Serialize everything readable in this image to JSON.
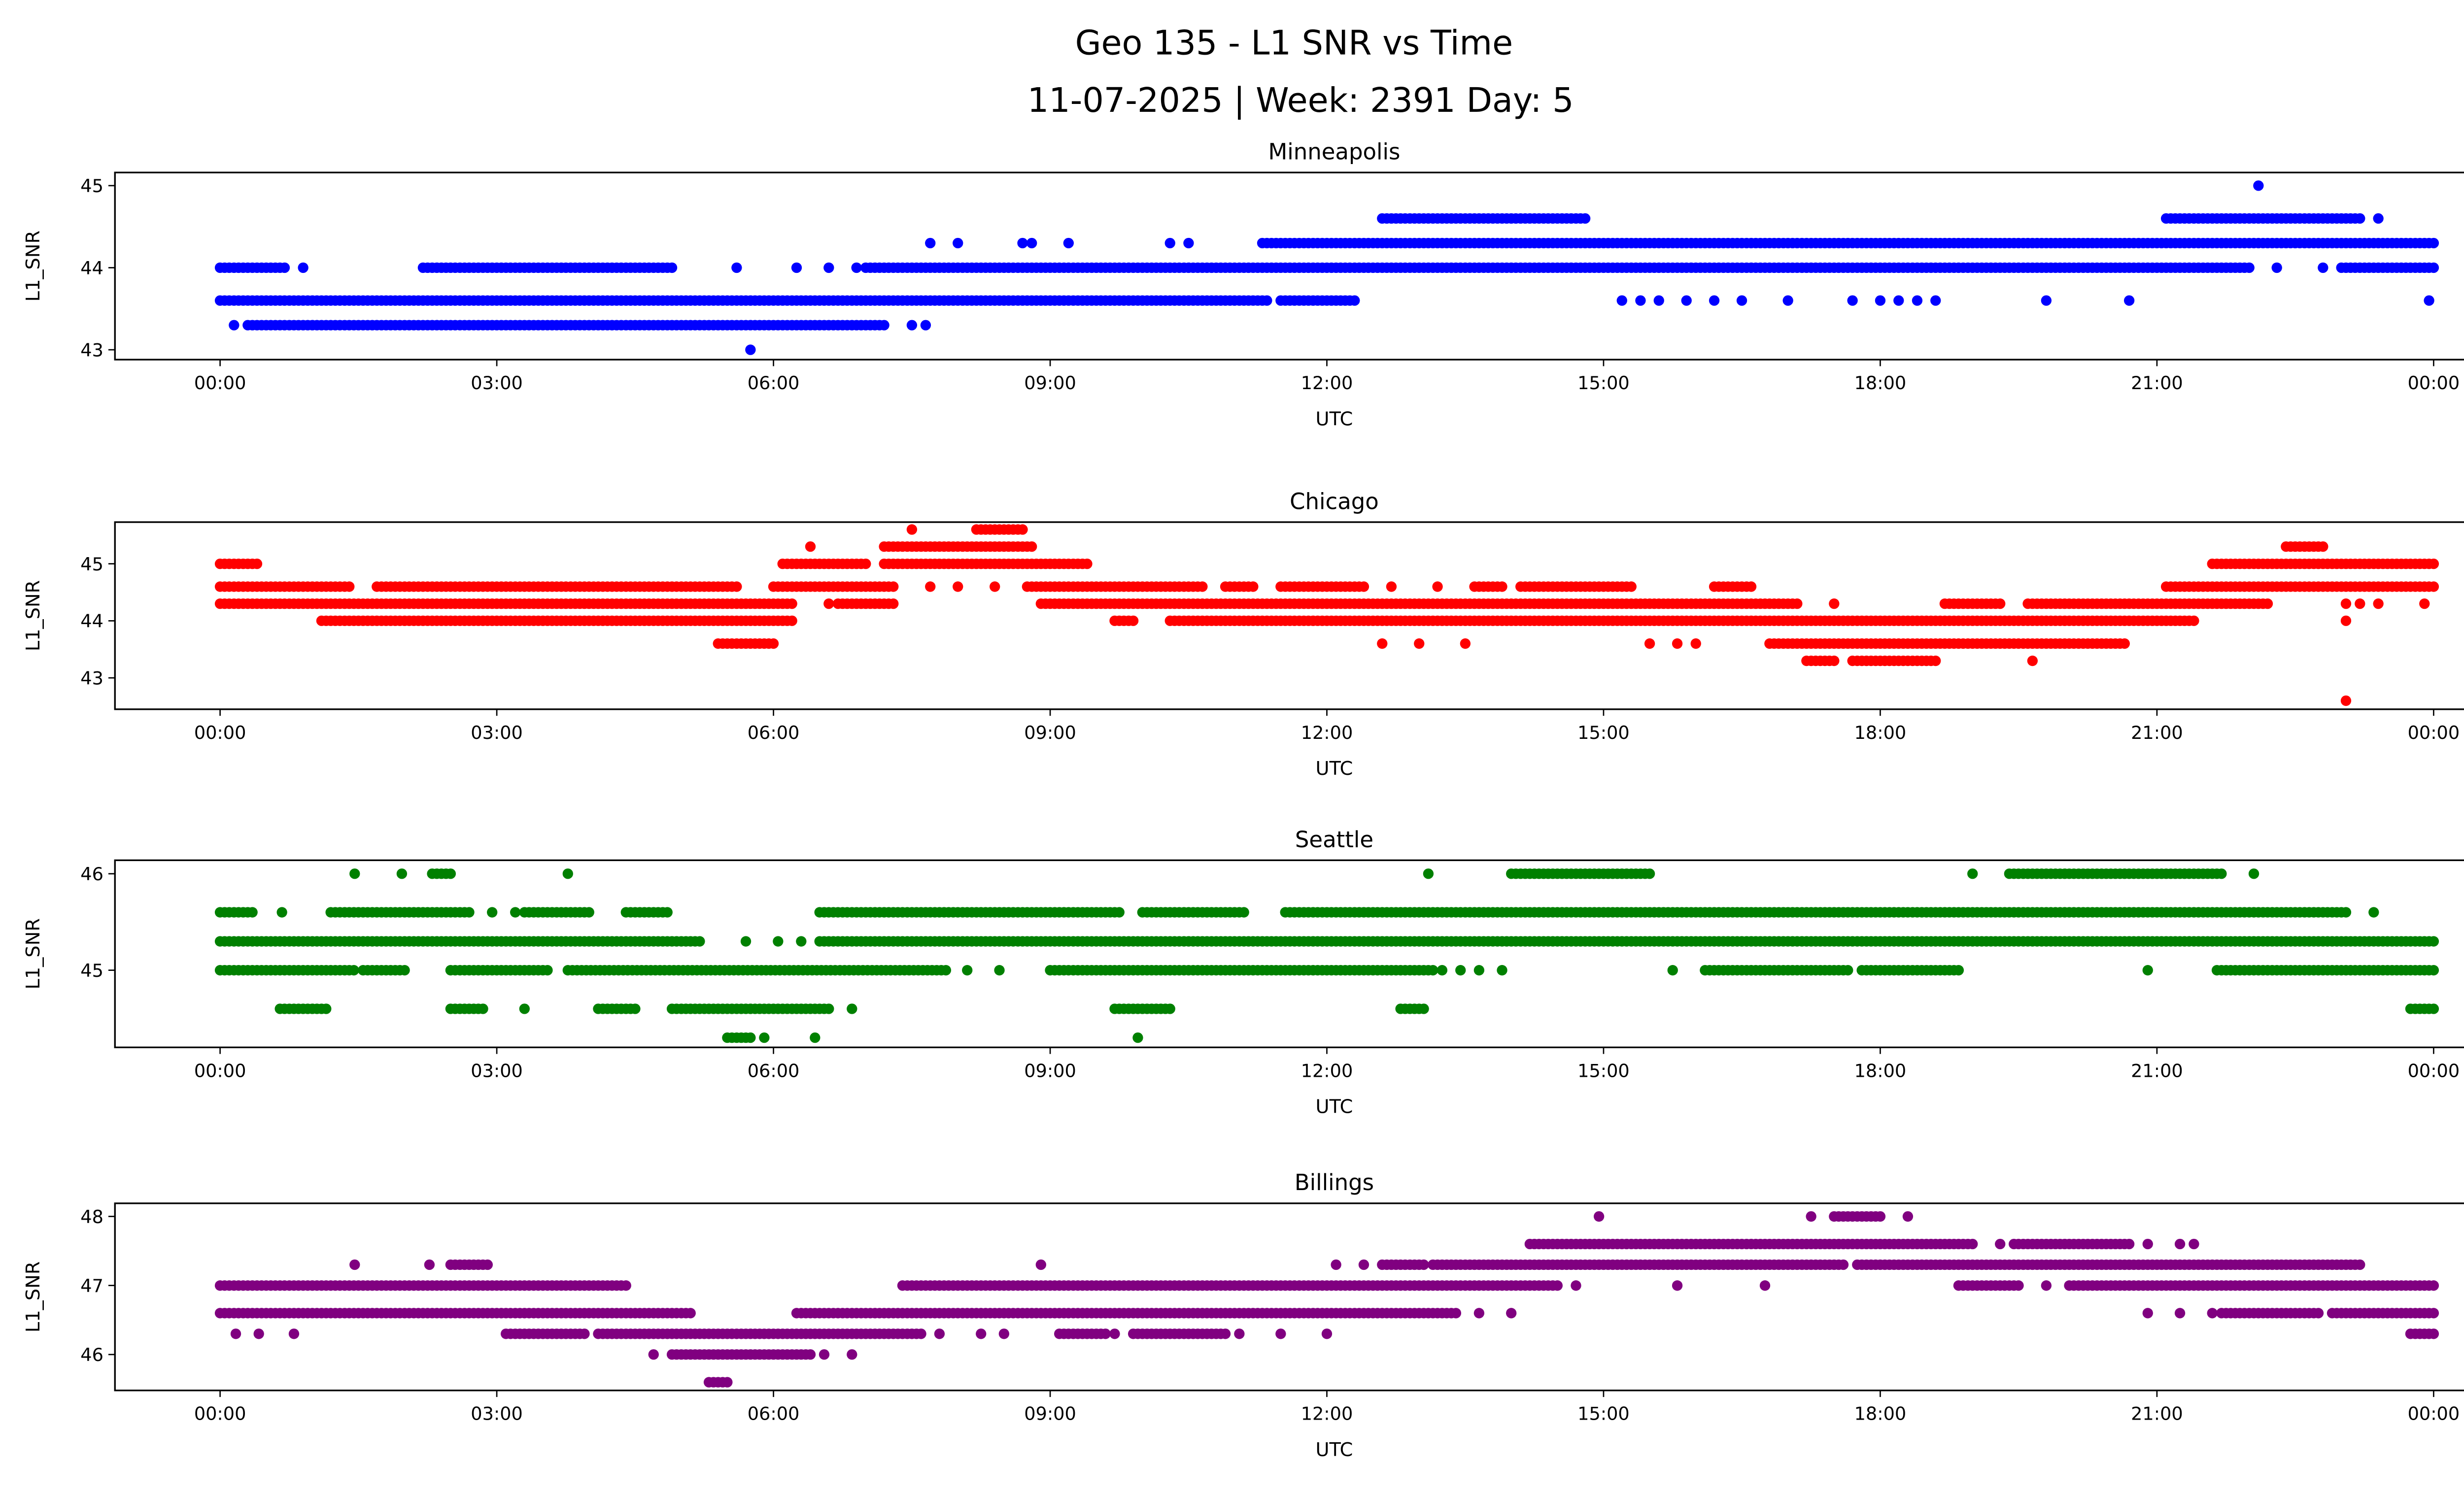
{
  "title_line1": "Geo 135 - L1 SNR vs Time",
  "title_line2": "11-07-2025 | Week: 2391 Day: 5",
  "chart_data": [
    {
      "type": "scatter",
      "title": "Minneapolis",
      "xlabel": "UTC",
      "ylabel": "L1_SNR",
      "color": "#0000ff",
      "xlim_hours": [
        -1.14,
        25.3
      ],
      "ylim": [
        42.88,
        45.16
      ],
      "yticks": [
        {
          "v": 43,
          "label": "43"
        },
        {
          "v": 44,
          "label": "44"
        },
        {
          "v": 45,
          "label": "45"
        }
      ],
      "runs": [
        [
          0.3,
          7.2,
          43.3
        ],
        [
          0,
          11.35,
          43.6
        ],
        [
          11.5,
          12.3,
          43.6
        ],
        [
          0,
          0.7,
          44.0
        ],
        [
          2.2,
          4.9,
          44.0
        ],
        [
          7.0,
          22.0,
          44.0
        ],
        [
          23.0,
          24,
          44.0
        ],
        [
          11.3,
          24,
          44.3
        ],
        [
          12.6,
          14.8,
          44.6
        ],
        [
          21.1,
          23.2,
          44.6
        ]
      ],
      "points": [
        [
          0.15,
          43.3
        ],
        [
          7.5,
          43.3
        ],
        [
          7.65,
          43.3
        ],
        [
          15.2,
          43.6
        ],
        [
          15.4,
          43.6
        ],
        [
          15.6,
          43.6
        ],
        [
          15.9,
          43.6
        ],
        [
          16.2,
          43.6
        ],
        [
          16.5,
          43.6
        ],
        [
          17.0,
          43.6
        ],
        [
          17.7,
          43.6
        ],
        [
          18.0,
          43.6
        ],
        [
          18.2,
          43.6
        ],
        [
          18.4,
          43.6
        ],
        [
          18.6,
          43.6
        ],
        [
          19.8,
          43.6
        ],
        [
          20.7,
          43.6
        ],
        [
          23.95,
          43.6
        ],
        [
          0.9,
          44.0
        ],
        [
          5.6,
          44.0
        ],
        [
          6.25,
          44.0
        ],
        [
          6.6,
          44.0
        ],
        [
          6.9,
          44.0
        ],
        [
          22.3,
          44.0
        ],
        [
          22.8,
          44.0
        ],
        [
          7.7,
          44.3
        ],
        [
          8.0,
          44.3
        ],
        [
          8.7,
          44.3
        ],
        [
          8.8,
          44.3
        ],
        [
          9.2,
          44.3
        ],
        [
          10.3,
          44.3
        ],
        [
          10.5,
          44.3
        ],
        [
          23.4,
          44.6
        ],
        [
          22.1,
          45.0
        ],
        [
          5.75,
          43.0
        ]
      ]
    },
    {
      "type": "scatter",
      "title": "Chicago",
      "xlabel": "UTC",
      "ylabel": "L1_SNR",
      "color": "#ff0000",
      "xlim_hours": [
        -1.14,
        25.3
      ],
      "ylim": [
        42.45,
        45.73
      ],
      "yticks": [
        {
          "v": 43,
          "label": "43"
        },
        {
          "v": 44,
          "label": "44"
        },
        {
          "v": 45,
          "label": "45"
        }
      ],
      "runs": [
        [
          8.2,
          8.7,
          45.6
        ],
        [
          7.2,
          8.8,
          45.3
        ],
        [
          22.4,
          22.8,
          45.3
        ],
        [
          0,
          0.4,
          45.0
        ],
        [
          6.1,
          7.0,
          45.0
        ],
        [
          7.2,
          9.4,
          45.0
        ],
        [
          21.6,
          24,
          45.0
        ],
        [
          0,
          1.4,
          44.6
        ],
        [
          1.7,
          5.6,
          44.6
        ],
        [
          6.0,
          7.3,
          44.6
        ],
        [
          8.75,
          10.65,
          44.6
        ],
        [
          10.9,
          11.2,
          44.6
        ],
        [
          11.5,
          12.4,
          44.6
        ],
        [
          13.6,
          13.9,
          44.6
        ],
        [
          14.1,
          15.3,
          44.6
        ],
        [
          16.2,
          16.6,
          44.6
        ],
        [
          21.1,
          24,
          44.6
        ],
        [
          0,
          6.2,
          44.3
        ],
        [
          6.7,
          7.3,
          44.3
        ],
        [
          8.9,
          17.1,
          44.3
        ],
        [
          18.7,
          19.3,
          44.3
        ],
        [
          19.6,
          22.2,
          44.3
        ],
        [
          1.1,
          6.2,
          44.0
        ],
        [
          9.7,
          9.9,
          44.0
        ],
        [
          10.3,
          21.4,
          44.0
        ],
        [
          5.4,
          6.0,
          43.6
        ],
        [
          16.8,
          20.65,
          43.6
        ],
        [
          17.2,
          17.5,
          43.3
        ],
        [
          17.7,
          18.6,
          43.3
        ]
      ],
      "points": [
        [
          7.5,
          45.6
        ],
        [
          6.4,
          45.3
        ],
        [
          7.7,
          44.6
        ],
        [
          8.0,
          44.6
        ],
        [
          8.4,
          44.6
        ],
        [
          12.7,
          44.6
        ],
        [
          13.2,
          44.6
        ],
        [
          6.6,
          44.3
        ],
        [
          17.5,
          44.3
        ],
        [
          23.05,
          44.3
        ],
        [
          23.2,
          44.3
        ],
        [
          23.4,
          44.3
        ],
        [
          23.9,
          44.3
        ],
        [
          23.05,
          44.0
        ],
        [
          12.6,
          43.6
        ],
        [
          13.0,
          43.6
        ],
        [
          13.5,
          43.6
        ],
        [
          15.5,
          43.6
        ],
        [
          15.8,
          43.6
        ],
        [
          16.0,
          43.6
        ],
        [
          19.65,
          43.3
        ],
        [
          23.05,
          42.6
        ]
      ]
    },
    {
      "type": "scatter",
      "title": "Seattle",
      "xlabel": "UTC",
      "ylabel": "L1_SNR",
      "color": "#008000",
      "xlim_hours": [
        -1.14,
        25.3
      ],
      "ylim": [
        44.2,
        46.14
      ],
      "yticks": [
        {
          "v": 45,
          "label": "45"
        },
        {
          "v": 46,
          "label": "46"
        }
      ],
      "runs": [
        [
          2.3,
          2.5,
          46.0
        ],
        [
          14.0,
          15.5,
          46.0
        ],
        [
          19.4,
          21.0,
          46.0
        ],
        [
          21.05,
          21.7,
          46.0
        ],
        [
          0,
          0.35,
          45.6
        ],
        [
          1.2,
          2.7,
          45.6
        ],
        [
          3.3,
          4.0,
          45.6
        ],
        [
          4.4,
          4.85,
          45.6
        ],
        [
          6.5,
          9.75,
          45.6
        ],
        [
          10.0,
          11.1,
          45.6
        ],
        [
          11.55,
          12.9,
          45.6
        ],
        [
          12.95,
          23.05,
          45.6
        ],
        [
          0,
          5.2,
          45.3
        ],
        [
          6.5,
          24,
          45.3
        ],
        [
          0,
          1.45,
          45.0
        ],
        [
          1.55,
          2.0,
          45.0
        ],
        [
          2.5,
          3.55,
          45.0
        ],
        [
          3.77,
          7.9,
          45.0
        ],
        [
          9.0,
          10.4,
          45.0
        ],
        [
          10.45,
          13.15,
          45.0
        ],
        [
          16.1,
          17.65,
          45.0
        ],
        [
          17.8,
          18.85,
          45.0
        ],
        [
          21.65,
          24,
          45.0
        ],
        [
          0.65,
          1.15,
          44.6
        ],
        [
          2.5,
          2.85,
          44.6
        ],
        [
          4.1,
          4.5,
          44.6
        ],
        [
          4.9,
          6.6,
          44.6
        ],
        [
          9.7,
          10.3,
          44.6
        ],
        [
          12.8,
          13.05,
          44.6
        ],
        [
          23.75,
          24,
          44.6
        ],
        [
          5.5,
          5.75,
          44.3
        ]
      ],
      "points": [
        [
          1.46,
          46.0
        ],
        [
          1.97,
          46.0
        ],
        [
          3.77,
          46.0
        ],
        [
          13.1,
          46.0
        ],
        [
          19.0,
          46.0
        ],
        [
          22.05,
          46.0
        ],
        [
          0.67,
          45.6
        ],
        [
          2.95,
          45.6
        ],
        [
          3.2,
          45.6
        ],
        [
          23.35,
          45.6
        ],
        [
          5.7,
          45.3
        ],
        [
          6.05,
          45.3
        ],
        [
          6.3,
          45.3
        ],
        [
          8.1,
          45.0
        ],
        [
          8.45,
          45.0
        ],
        [
          13.25,
          45.0
        ],
        [
          13.45,
          45.0
        ],
        [
          13.65,
          45.0
        ],
        [
          13.9,
          45.0
        ],
        [
          15.75,
          45.0
        ],
        [
          20.9,
          45.0
        ],
        [
          3.3,
          44.6
        ],
        [
          6.85,
          44.6
        ],
        [
          5.9,
          44.3
        ],
        [
          6.45,
          44.3
        ],
        [
          9.95,
          44.3
        ]
      ]
    },
    {
      "type": "scatter",
      "title": "Billings",
      "xlabel": "UTC",
      "ylabel": "L1_SNR",
      "color": "#800080",
      "xlim_hours": [
        -1.14,
        25.3
      ],
      "ylim": [
        45.48,
        48.19
      ],
      "yticks": [
        {
          "v": 46,
          "label": "46"
        },
        {
          "v": 47,
          "label": "47"
        },
        {
          "v": 48,
          "label": "48"
        }
      ],
      "runs": [
        [
          17.5,
          18.0,
          48.0
        ],
        [
          14.2,
          19.0,
          47.6
        ],
        [
          19.45,
          20.7,
          47.6
        ],
        [
          2.5,
          2.9,
          47.3
        ],
        [
          12.6,
          13.05,
          47.3
        ],
        [
          13.15,
          17.6,
          47.3
        ],
        [
          17.75,
          23.2,
          47.3
        ],
        [
          0,
          4.4,
          47.0
        ],
        [
          7.4,
          14.5,
          47.0
        ],
        [
          18.85,
          19.5,
          47.0
        ],
        [
          20.05,
          24,
          47.0
        ],
        [
          0,
          5.1,
          46.6
        ],
        [
          6.25,
          13.4,
          46.6
        ],
        [
          21.7,
          22.75,
          46.6
        ],
        [
          22.9,
          24,
          46.6
        ],
        [
          3.1,
          3.95,
          46.3
        ],
        [
          4.1,
          7.6,
          46.3
        ],
        [
          9.1,
          9.6,
          46.3
        ],
        [
          9.9,
          10.9,
          46.3
        ],
        [
          23.75,
          24,
          46.3
        ],
        [
          4.9,
          6.4,
          46.0
        ],
        [
          5.3,
          5.5,
          45.6
        ]
      ],
      "points": [
        [
          14.95,
          48.0
        ],
        [
          17.25,
          48.0
        ],
        [
          18.3,
          48.0
        ],
        [
          19.3,
          47.6
        ],
        [
          20.9,
          47.6
        ],
        [
          21.25,
          47.6
        ],
        [
          21.4,
          47.6
        ],
        [
          1.46,
          47.3
        ],
        [
          2.27,
          47.3
        ],
        [
          8.9,
          47.3
        ],
        [
          12.1,
          47.3
        ],
        [
          12.4,
          47.3
        ],
        [
          14.7,
          47.0
        ],
        [
          15.8,
          47.0
        ],
        [
          16.75,
          47.0
        ],
        [
          19.8,
          47.0
        ],
        [
          13.65,
          46.6
        ],
        [
          14.0,
          46.6
        ],
        [
          20.9,
          46.6
        ],
        [
          21.25,
          46.6
        ],
        [
          21.6,
          46.6
        ],
        [
          0.17,
          46.3
        ],
        [
          0.42,
          46.3
        ],
        [
          0.8,
          46.3
        ],
        [
          7.8,
          46.3
        ],
        [
          8.25,
          46.3
        ],
        [
          8.5,
          46.3
        ],
        [
          9.7,
          46.3
        ],
        [
          11.05,
          46.3
        ],
        [
          11.5,
          46.3
        ],
        [
          12.0,
          46.3
        ],
        [
          4.7,
          46.0
        ],
        [
          6.55,
          46.0
        ],
        [
          6.85,
          46.0
        ]
      ]
    }
  ],
  "xticks": [
    {
      "h": 0,
      "label": "00:00"
    },
    {
      "h": 3,
      "label": "03:00"
    },
    {
      "h": 6,
      "label": "06:00"
    },
    {
      "h": 9,
      "label": "09:00"
    },
    {
      "h": 12,
      "label": "12:00"
    },
    {
      "h": 15,
      "label": "15:00"
    },
    {
      "h": 18,
      "label": "18:00"
    },
    {
      "h": 21,
      "label": "21:00"
    },
    {
      "h": 24,
      "label": "00:00"
    }
  ]
}
